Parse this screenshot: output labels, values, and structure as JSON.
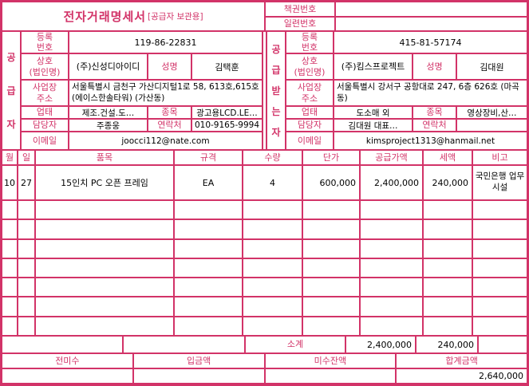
{
  "colors": {
    "accent": "#d23368"
  },
  "header": {
    "title": "전자거래명세서",
    "title_suffix": "[공급자 보관용]",
    "doc_numbers": [
      {
        "label": "책권번호",
        "value": ""
      },
      {
        "label": "일련번호",
        "value": ""
      }
    ]
  },
  "field_labels": {
    "reg_no": "등록\n번호",
    "company": "상호\n(법인명)",
    "ceo": "성명",
    "address": "사업장\n주소",
    "biz_type": "업태",
    "item_type": "종목",
    "manager": "담당자",
    "contact": "연락처",
    "email": "이메일"
  },
  "supplier": {
    "side_label": "공급자",
    "reg_no": "119-86-22831",
    "company": "(주)신성디아이디",
    "ceo": "김택훈",
    "address": "서울특별시 금천구 가산디지털1로 58, 613호,615호(에이스한솔타워) (가산동)",
    "biz_type": "제조.건설.도…",
    "item_type": "광고용LCD.LE…",
    "manager": "주종웅",
    "contact": "010-9165-9994",
    "email": "joocci112@nate.com"
  },
  "buyer": {
    "side_label": "공급받는자",
    "reg_no": "415-81-57174",
    "company": "(주)킴스프로젝트",
    "ceo": "김대원",
    "address": "서울특별시 강서구 공항대로 247, 6층 626호 (마곡동)",
    "biz_type": "도소매 외",
    "item_type": "영상장비,산…",
    "manager": "김대원 대표…",
    "contact": "",
    "email": "kimsproject1313@hanmail.net"
  },
  "items_table": {
    "headers": [
      "월",
      "일",
      "품목",
      "규격",
      "수량",
      "단가",
      "공급가액",
      "세액",
      "비고"
    ],
    "rows": [
      {
        "month": "10",
        "day": "27",
        "item": "15인치 PC 오픈 프레임",
        "spec": "EA",
        "qty": "4",
        "unit_price": "600,000",
        "supply_amount": "2,400,000",
        "tax": "240,000",
        "note": "국민은행 업무시설"
      }
    ],
    "empty_row_count": 7,
    "subtotal": {
      "label": "소계",
      "supply_amount": "2,400,000",
      "tax": "240,000"
    }
  },
  "summary": {
    "headers": [
      "전미수",
      "입금액",
      "미수잔액",
      "합계금액"
    ],
    "values": [
      "",
      "",
      "",
      "2,640,000"
    ]
  }
}
